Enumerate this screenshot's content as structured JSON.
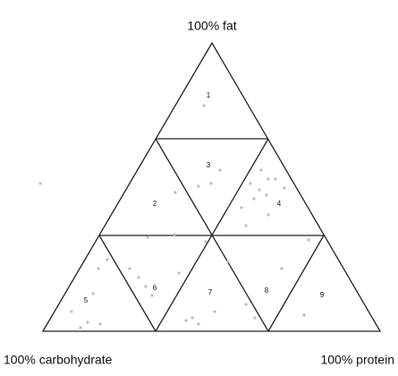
{
  "labels": {
    "top": "100% fat",
    "left": "100% carbohydrate",
    "right": "100% protein"
  },
  "regions": [
    "1",
    "2",
    "3",
    "4",
    "5",
    "6",
    "7",
    "8",
    "9"
  ]
}
